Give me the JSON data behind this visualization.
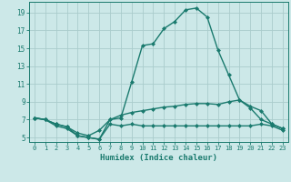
{
  "line1": {
    "x": [
      0,
      1,
      2,
      3,
      4,
      5,
      6,
      7,
      8,
      9,
      10,
      11,
      12,
      13,
      14,
      15,
      16,
      17,
      18,
      19,
      20,
      21,
      22,
      23
    ],
    "y": [
      7.2,
      7.0,
      6.5,
      6.2,
      5.2,
      5.0,
      4.8,
      7.0,
      7.2,
      11.2,
      15.3,
      15.5,
      17.2,
      18.0,
      19.3,
      19.5,
      18.5,
      14.8,
      12.0,
      9.2,
      8.3,
      7.0,
      6.5,
      6.0
    ]
  },
  "line2": {
    "x": [
      0,
      1,
      2,
      3,
      4,
      5,
      6,
      7,
      8,
      9,
      10,
      11,
      12,
      13,
      14,
      15,
      16,
      17,
      18,
      19,
      20,
      21,
      22,
      23
    ],
    "y": [
      7.2,
      7.0,
      6.5,
      6.2,
      5.5,
      5.2,
      5.8,
      7.0,
      7.5,
      7.8,
      8.0,
      8.2,
      8.4,
      8.5,
      8.7,
      8.8,
      8.8,
      8.7,
      9.0,
      9.2,
      8.5,
      8.0,
      6.5,
      6.0
    ]
  },
  "line3": {
    "x": [
      0,
      1,
      2,
      3,
      4,
      5,
      6,
      7,
      8,
      9,
      10,
      11,
      12,
      13,
      14,
      15,
      16,
      17,
      18,
      19,
      20,
      21,
      22,
      23
    ],
    "y": [
      7.2,
      7.0,
      6.3,
      6.0,
      5.2,
      5.0,
      4.8,
      6.5,
      6.3,
      6.5,
      6.3,
      6.3,
      6.3,
      6.3,
      6.3,
      6.3,
      6.3,
      6.3,
      6.3,
      6.3,
      6.3,
      6.5,
      6.3,
      5.8
    ]
  },
  "line_color": "#1a7a6e",
  "bg_color": "#cce8e8",
  "grid_color": "#aacccc",
  "xlabel": "Humidex (Indice chaleur)",
  "yticks": [
    5,
    7,
    9,
    11,
    13,
    15,
    17,
    19
  ],
  "xticks": [
    0,
    1,
    2,
    3,
    4,
    5,
    6,
    7,
    8,
    9,
    10,
    11,
    12,
    13,
    14,
    15,
    16,
    17,
    18,
    19,
    20,
    21,
    22,
    23
  ],
  "xlim": [
    -0.5,
    23.5
  ],
  "ylim": [
    4.5,
    20.2
  ],
  "marker": "D",
  "markersize": 2.0,
  "linewidth": 1.0
}
